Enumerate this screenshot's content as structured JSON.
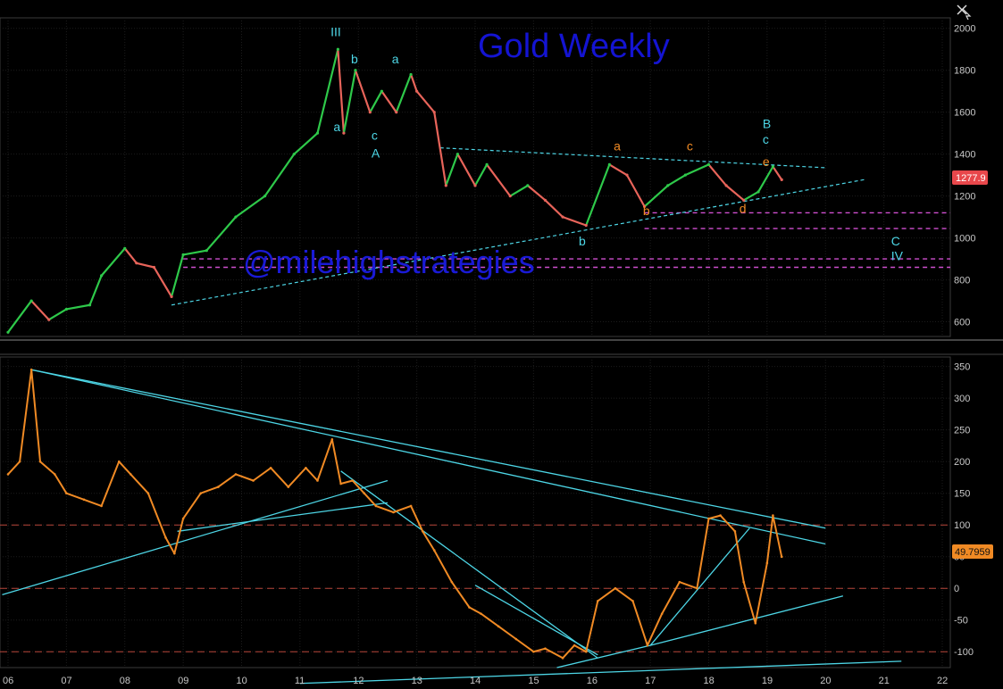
{
  "title": "Gold Weekly",
  "watermark": "@milehighstrategies",
  "colors": {
    "background": "#000000",
    "price_up": "#2ec94a",
    "price_down": "#e8645a",
    "oscillator": "#f08a24",
    "trendline": "#4dd6e6",
    "support": "#d04fd0",
    "wave_cyan": "#4dd6e6",
    "wave_orange": "#f08a24",
    "title": "#1414d2",
    "price_badge": "#e8474b",
    "osc_badge": "#f08a24"
  },
  "top_right_icon": "crosshair-cursor-icon",
  "last_price": "1277.9",
  "osc_last": "49.7959",
  "chart_data": [
    {
      "type": "line",
      "panel": "price",
      "ylim": [
        530,
        2050
      ],
      "y_ticks": [
        "2000",
        "1800",
        "1600",
        "1400",
        "1200",
        "1000",
        "800",
        "600"
      ],
      "series": [
        {
          "x": [
            2006.0,
            2006.4,
            2006.7,
            2007.0,
            2007.4,
            2007.6,
            2008.0,
            2008.2,
            2008.5,
            2008.8,
            2009.0,
            2009.4,
            2009.9,
            2010.4,
            2010.9,
            2011.3,
            2011.65,
            2011.75,
            2011.95,
            2012.2,
            2012.4,
            2012.65,
            2012.9,
            2013.0,
            2013.3,
            2013.5,
            2013.7,
            2014.0,
            2014.2,
            2014.6,
            2014.9,
            2015.2,
            2015.5,
            2015.9,
            2016.3,
            2016.6,
            2016.9,
            2017.3,
            2017.6,
            2018.0,
            2018.3,
            2018.6,
            2018.85,
            2019.1,
            2019.25
          ],
          "y": [
            550,
            700,
            610,
            660,
            680,
            820,
            950,
            880,
            860,
            720,
            920,
            940,
            1100,
            1200,
            1400,
            1500,
            1900,
            1500,
            1800,
            1600,
            1700,
            1600,
            1780,
            1700,
            1600,
            1250,
            1400,
            1250,
            1350,
            1200,
            1250,
            1180,
            1100,
            1060,
            1350,
            1300,
            1150,
            1250,
            1300,
            1350,
            1250,
            1180,
            1220,
            1340,
            1277.9
          ]
        }
      ],
      "support_levels": [
        1120,
        1045,
        900,
        860
      ],
      "x_tick_labels": [
        "06",
        "07",
        "08",
        "09",
        "10",
        "11",
        "12",
        "13",
        "14",
        "15",
        "16",
        "17",
        "18",
        "19",
        "20",
        "21",
        "22"
      ],
      "wave_labels": [
        {
          "text": "III",
          "color": "cyan"
        },
        {
          "text": "a",
          "color": "cyan"
        },
        {
          "text": "b",
          "color": "cyan"
        },
        {
          "text": "c",
          "color": "cyan"
        },
        {
          "text": "A",
          "color": "cyan"
        },
        {
          "text": "a",
          "color": "cyan"
        },
        {
          "text": "b",
          "color": "cyan"
        },
        {
          "text": "a",
          "color": "orange"
        },
        {
          "text": "b",
          "color": "orange"
        },
        {
          "text": "c",
          "color": "orange"
        },
        {
          "text": "d",
          "color": "orange"
        },
        {
          "text": "e",
          "color": "orange"
        },
        {
          "text": "B",
          "color": "cyan"
        },
        {
          "text": "c",
          "color": "cyan"
        },
        {
          "text": "C",
          "color": "cyan"
        },
        {
          "text": "IV",
          "color": "cyan"
        }
      ]
    },
    {
      "type": "line",
      "panel": "oscillator",
      "ylim": [
        -125,
        365
      ],
      "y_ticks": [
        "350",
        "300",
        "250",
        "200",
        "150",
        "100",
        "50",
        "0",
        "-50",
        "-100"
      ],
      "reference_levels": [
        100,
        0,
        -100
      ],
      "series": [
        {
          "x": [
            2006.0,
            2006.2,
            2006.4,
            2006.55,
            2006.8,
            2007.0,
            2007.3,
            2007.6,
            2007.9,
            2008.1,
            2008.4,
            2008.7,
            2008.85,
            2009.0,
            2009.3,
            2009.6,
            2009.9,
            2010.2,
            2010.5,
            2010.8,
            2011.1,
            2011.3,
            2011.55,
            2011.7,
            2011.9,
            2012.1,
            2012.3,
            2012.6,
            2012.9,
            2013.1,
            2013.3,
            2013.6,
            2013.9,
            2014.1,
            2014.4,
            2014.7,
            2015.0,
            2015.2,
            2015.5,
            2015.7,
            2015.9,
            2016.1,
            2016.4,
            2016.7,
            2016.95,
            2017.2,
            2017.5,
            2017.8,
            2018.0,
            2018.2,
            2018.45,
            2018.6,
            2018.8,
            2019.0,
            2019.1,
            2019.25
          ],
          "y": [
            180,
            200,
            345,
            200,
            180,
            150,
            140,
            130,
            200,
            180,
            150,
            80,
            55,
            110,
            150,
            160,
            180,
            170,
            190,
            160,
            190,
            170,
            235,
            165,
            170,
            150,
            130,
            120,
            130,
            90,
            60,
            10,
            -30,
            -40,
            -60,
            -80,
            -100,
            -95,
            -110,
            -90,
            -100,
            -20,
            0,
            -20,
            -90,
            -40,
            10,
            0,
            110,
            115,
            90,
            10,
            -55,
            40,
            115,
            49.8
          ]
        }
      ]
    }
  ]
}
